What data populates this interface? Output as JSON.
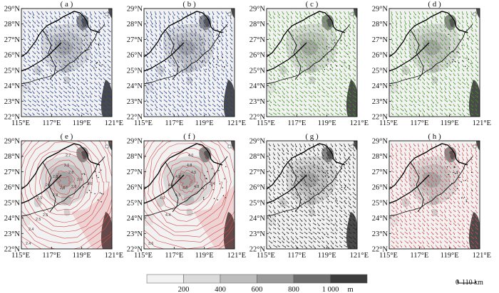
{
  "panels": [
    {
      "label": "( a )",
      "color": "#1f3f8f",
      "style": "wind",
      "seed": 1
    },
    {
      "label": "( b )",
      "color": "#1f3f8f",
      "style": "wind",
      "seed": 2
    },
    {
      "label": "( c )",
      "color": "#3c9a1c",
      "style": "wind",
      "seed": 3
    },
    {
      "label": "( d )",
      "color": "#3c9a1c",
      "style": "wind",
      "seed": 4
    },
    {
      "label": "( e )",
      "color": "#d94a4a",
      "style": "contour",
      "seed": 5,
      "contour_labels": [
        "2.4",
        "2.5",
        "2.6",
        "2.6",
        "2.8",
        "2.8",
        "2.8",
        "2.9",
        "2.8",
        "2.7",
        "2.6",
        "2.5",
        "2.5",
        "2.4",
        "2.6"
      ]
    },
    {
      "label": "( f )",
      "color": "#d94a4a",
      "style": "contour",
      "seed": 6,
      "contour_labels": [
        "3.6",
        "4.0",
        "4.8",
        "4.4",
        "4.8",
        "4.5",
        "4.8",
        "4.8",
        "4.5",
        "4.0",
        "3.4",
        "4.4"
      ]
    },
    {
      "label": "( g )",
      "color": "#222222",
      "style": "wind",
      "seed": 7
    },
    {
      "label": "( h )",
      "color": "#d94a4a",
      "style": "wind",
      "seed": 8
    }
  ],
  "lat_ticks": [
    "22°N",
    "23°N",
    "24°N",
    "25°N",
    "26°N",
    "27°N",
    "28°N",
    "29°N"
  ],
  "lon_ticks": [
    "115°E",
    "117°E",
    "119°E",
    "121°E"
  ],
  "colorbar": {
    "labels": [
      "200",
      "400",
      "600",
      "800",
      "1 000"
    ],
    "unit": "m",
    "colors": [
      "#f2f2f2",
      "#dadada",
      "#bdbdbd",
      "#9a9a9a",
      "#6e6e6e",
      "#3c3c3c"
    ]
  },
  "scalebar": {
    "zero": "0",
    "label": "110 km"
  }
}
